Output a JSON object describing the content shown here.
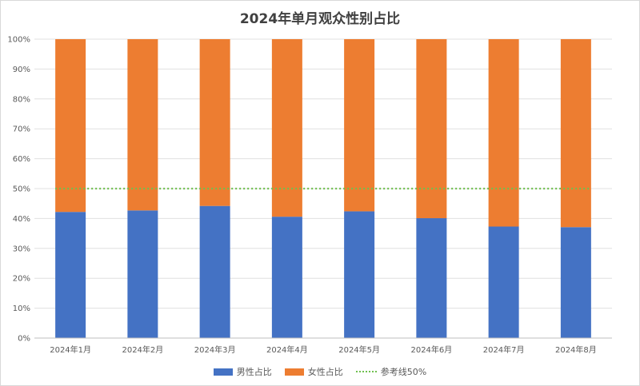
{
  "chart_data": {
    "type": "bar",
    "stacked": true,
    "title": "2024年单月观众性别占比",
    "categories": [
      "2024年1月",
      "2024年2月",
      "2024年3月",
      "2024年4月",
      "2024年5月",
      "2024年6月",
      "2024年7月",
      "2024年8月"
    ],
    "series": [
      {
        "name": "男性占比",
        "values": [
          42.2,
          42.7,
          44.2,
          40.6,
          42.4,
          40.1,
          37.3,
          37.1
        ],
        "color": "#4472c4"
      },
      {
        "name": "女性占比",
        "values": [
          57.8,
          57.3,
          55.8,
          59.4,
          57.6,
          59.9,
          62.7,
          62.9
        ],
        "color": "#ed7d31"
      }
    ],
    "reference_line": {
      "name": "参考线50%",
      "value": 50,
      "color": "#70c050"
    },
    "y_ticks": [
      "0%",
      "10%",
      "20%",
      "30%",
      "40%",
      "50%",
      "60%",
      "70%",
      "80%",
      "90%",
      "100%"
    ],
    "ylim": [
      0,
      100
    ],
    "xlabel": "",
    "ylabel": "",
    "grid": true,
    "legend_position": "bottom"
  }
}
